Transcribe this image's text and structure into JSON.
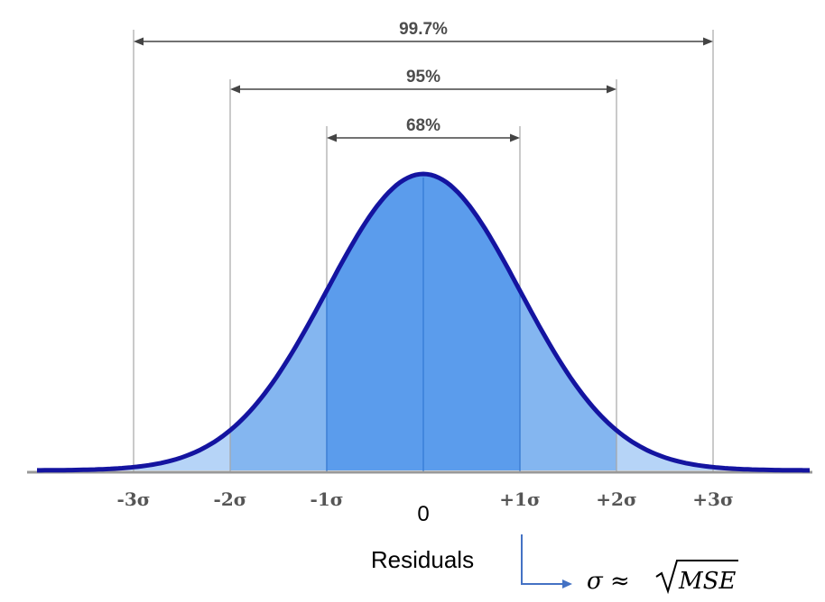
{
  "chart_data": {
    "type": "area",
    "x_label": "Residuals",
    "center_label": "0",
    "tick_labels": [
      "-3σ",
      "-2σ",
      "-1σ",
      "+1σ",
      "+2σ",
      "+3σ"
    ],
    "ticks_sigma": [
      -3,
      -2,
      -1,
      1,
      2,
      3
    ],
    "xlim": [
      -4,
      4
    ],
    "bands": [
      {
        "label": "99.7%",
        "sigma": 3
      },
      {
        "label": "95%",
        "sigma": 2
      },
      {
        "label": "68%",
        "sigma": 1
      }
    ],
    "fill_shades": {
      "center": "#5b9cec",
      "middle": "#84b6f0",
      "outer": "#b6d4f7"
    },
    "curve_color": "#1414a0",
    "formula": {
      "lhs": "σ ≈ ",
      "radicand": "MSE"
    }
  }
}
